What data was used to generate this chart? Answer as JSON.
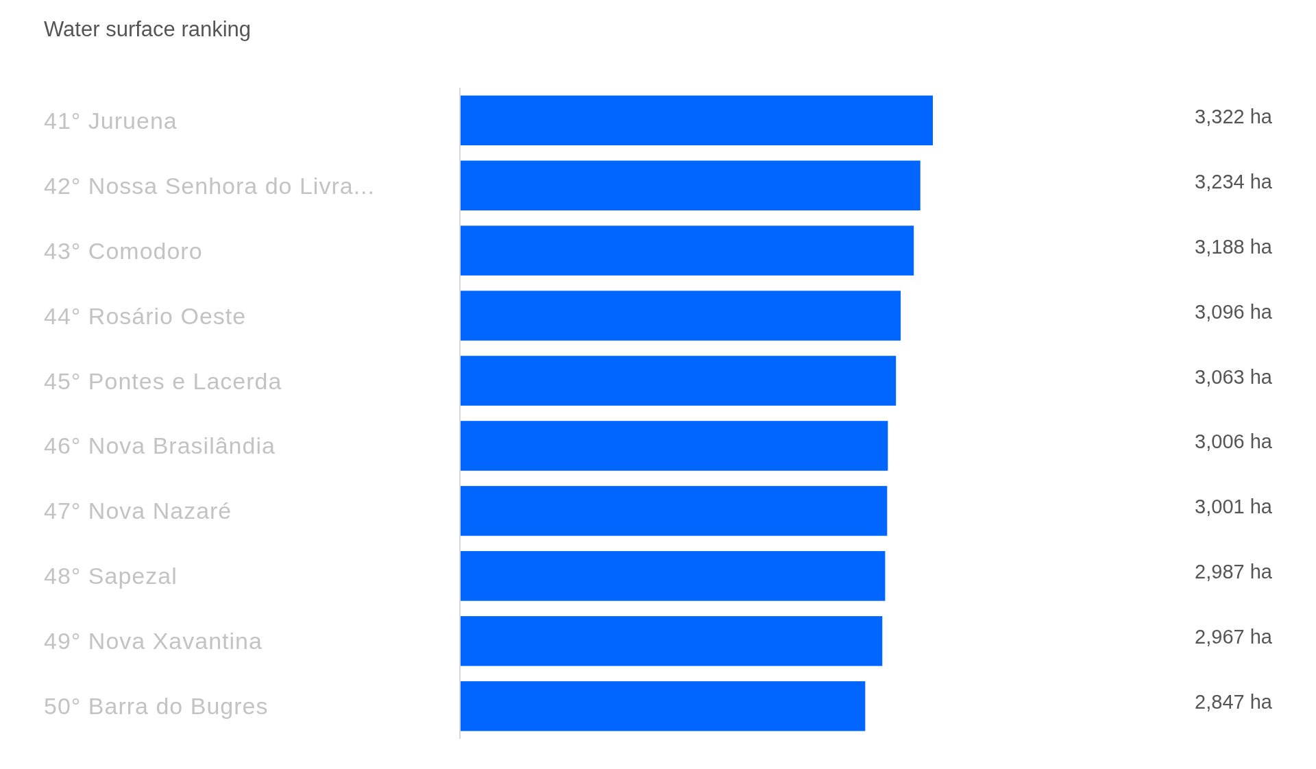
{
  "chart_data": {
    "type": "bar",
    "orientation": "horizontal",
    "title": "Water surface ranking",
    "categories": [
      "41° Juruena",
      "42° Nossa Senhora do Livra...",
      "43° Comodoro",
      "44° Rosário Oeste",
      "45° Pontes e Lacerda",
      "46° Nova Brasilândia",
      "47° Nova Nazaré",
      "48° Sapezal",
      "49° Nova Xavantina",
      "50° Barra do Bugres"
    ],
    "values": [
      3322,
      3234,
      3188,
      3096,
      3063,
      3006,
      3001,
      2987,
      2967,
      2847
    ],
    "value_labels": [
      "3,322 ha",
      "3,234 ha",
      "3,188 ha",
      "3,096 ha",
      "3,063 ha",
      "3,006 ha",
      "3,001 ha",
      "2,987 ha",
      "2,967 ha",
      "2,847 ha"
    ],
    "color": "#0066ff"
  }
}
